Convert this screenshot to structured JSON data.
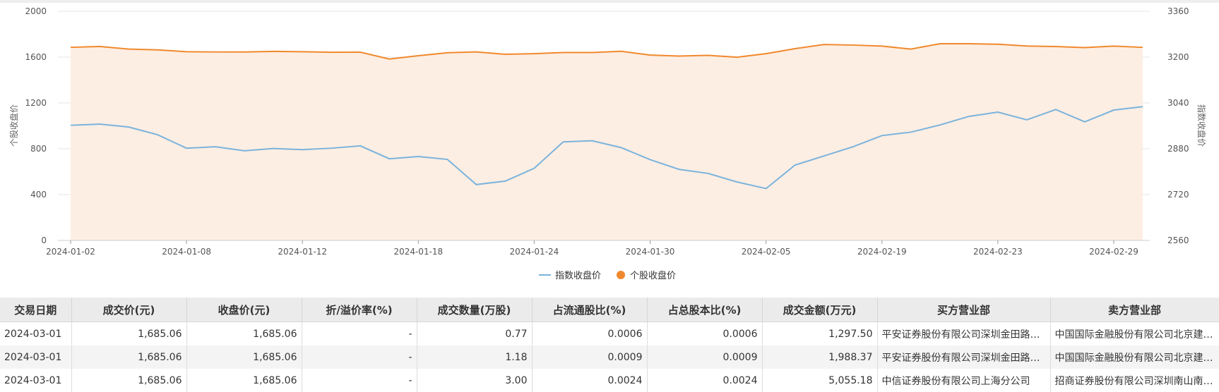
{
  "chart_data": {
    "type": "line",
    "x": [
      "2024-01-02",
      "2024-01-03",
      "2024-01-04",
      "2024-01-05",
      "2024-01-08",
      "2024-01-09",
      "2024-01-10",
      "2024-01-11",
      "2024-01-12",
      "2024-01-15",
      "2024-01-16",
      "2024-01-17",
      "2024-01-18",
      "2024-01-19",
      "2024-01-22",
      "2024-01-23",
      "2024-01-24",
      "2024-01-25",
      "2024-01-26",
      "2024-01-29",
      "2024-01-30",
      "2024-01-31",
      "2024-02-01",
      "2024-02-02",
      "2024-02-05",
      "2024-02-06",
      "2024-02-07",
      "2024-02-08",
      "2024-02-19",
      "2024-02-20",
      "2024-02-21",
      "2024-02-22",
      "2024-02-23",
      "2024-02-26",
      "2024-02-27",
      "2024-02-28",
      "2024-02-29",
      "2024-03-01"
    ],
    "x_ticks": [
      "2024-01-02",
      "2024-01-08",
      "2024-01-12",
      "2024-01-18",
      "2024-01-24",
      "2024-01-30",
      "2024-02-05",
      "2024-02-19",
      "2024-02-23",
      "2024-02-29"
    ],
    "series": [
      {
        "name": "指数收盘价",
        "axis": "right",
        "color": "#7ab3dc",
        "values": [
          2962,
          2966,
          2956,
          2929,
          2882,
          2887,
          2873,
          2881,
          2877,
          2882,
          2890,
          2845,
          2853,
          2843,
          2755,
          2767,
          2812,
          2904,
          2908,
          2884,
          2842,
          2808,
          2794,
          2764,
          2741,
          2823,
          2855,
          2887,
          2926,
          2938,
          2963,
          2993,
          3008,
          2981,
          3017,
          2974,
          3015,
          3027
        ]
      },
      {
        "name": "个股收盘价",
        "axis": "left",
        "color": "#f0892e",
        "fill": "#fdeee3",
        "values": [
          1685,
          1693,
          1670,
          1663,
          1647,
          1645,
          1645,
          1650,
          1647,
          1642,
          1643,
          1583,
          1612,
          1638,
          1645,
          1625,
          1630,
          1640,
          1640,
          1651,
          1618,
          1609,
          1615,
          1599,
          1630,
          1674,
          1710,
          1705,
          1696,
          1670,
          1717,
          1717,
          1712,
          1697,
          1692,
          1683,
          1696,
          1685
        ]
      }
    ],
    "ylabel_left": "个股收盘价",
    "ylabel_right": "指数收盘价",
    "ylim_left": [
      0,
      2000
    ],
    "yticks_left": [
      "0",
      "400",
      "800",
      "1200",
      "1600",
      "2000"
    ],
    "ylim_right": [
      2560,
      3360
    ],
    "yticks_right": [
      "2560",
      "2720",
      "2880",
      "3040",
      "3200",
      "3360"
    ],
    "grid": true,
    "legend_placement": "bottom-center"
  },
  "table": {
    "headers": [
      "交易日期",
      "成交价(元)",
      "收盘价(元)",
      "折/溢价率(%)",
      "成交数量(万股)",
      "占流通股比(%)",
      "占总股本比(%)",
      "成交金额(万元)",
      "买方营业部",
      "卖方营业部"
    ],
    "rows": [
      [
        "2024-03-01",
        "1,685.06",
        "1,685.06",
        "-",
        "0.77",
        "0.0006",
        "0.0006",
        "1,297.50",
        "平安证券股份有限公司深圳金田路证券营业部",
        "中国国际金融股份有限公司北京建国门外大街证券营业部"
      ],
      [
        "2024-03-01",
        "1,685.06",
        "1,685.06",
        "-",
        "1.18",
        "0.0009",
        "0.0009",
        "1,988.37",
        "平安证券股份有限公司深圳金田路证券营业部",
        "中国国际金融股份有限公司北京建国门外大街证券营业部"
      ],
      [
        "2024-03-01",
        "1,685.06",
        "1,685.06",
        "-",
        "3.00",
        "0.0024",
        "0.0024",
        "5,055.18",
        "中信证券股份有限公司上海分公司",
        "招商证券股份有限公司深圳南山南油大道证券营业部"
      ]
    ]
  }
}
